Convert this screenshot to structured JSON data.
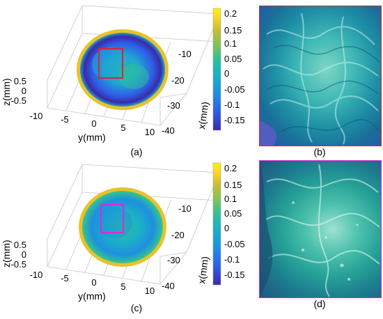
{
  "colors": {
    "colormap": [
      "#3a2aa8",
      "#2f5ee6",
      "#1f8fe0",
      "#19b0c8",
      "#2fc097",
      "#7cc45a",
      "#c8bd35",
      "#f6d62a",
      "#f9f20f"
    ],
    "box_b": "#e0203a",
    "box_d": "#d72ad7",
    "plate_rim": "#e9c22b",
    "grid": "#d0d0d0"
  },
  "chart_data": [
    {
      "panel": "(a)",
      "type": "surface",
      "axes": {
        "x": {
          "label": "x(mm)",
          "ticks": [
            -10,
            -20,
            -30,
            -40
          ]
        },
        "y": {
          "label": "y(mm)",
          "ticks": [
            -10,
            -5,
            0,
            5,
            10
          ]
        },
        "z": {
          "label": "z(mm)",
          "ticks": [
            0.5,
            0,
            -0.5
          ]
        }
      },
      "colorbar": {
        "ticks": [
          0.2,
          0.15,
          0.1,
          0.05,
          0,
          -0.05,
          -0.1,
          -0.15
        ],
        "range": [
          -0.18,
          0.22
        ]
      },
      "highlight_box_color": "#e0203a"
    },
    {
      "panel": "(c)",
      "type": "surface",
      "axes": {
        "x": {
          "label": "x(mm)",
          "ticks": [
            -10,
            -20,
            -30,
            -40
          ]
        },
        "y": {
          "label": "y(mm)",
          "ticks": [
            -10,
            -5,
            0,
            5,
            10
          ]
        },
        "z": {
          "label": "z(mm)",
          "ticks": [
            0.5,
            0,
            -0.5
          ]
        }
      },
      "colorbar": {
        "ticks": [
          0.2,
          0.15,
          0.1,
          0.05,
          0,
          -0.05,
          -0.1,
          -0.15
        ],
        "range": [
          -0.18,
          0.22
        ]
      },
      "highlight_box_color": "#d72ad7"
    }
  ],
  "captions": {
    "a": "(a)",
    "b": "(b)",
    "c": "(c)",
    "d": "(d)"
  },
  "axis_text": {
    "a": {
      "z_ticks": [
        "0.5",
        "0",
        "-0.5"
      ],
      "y_ticks": [
        "-10",
        "-5",
        "0",
        "5",
        "10"
      ],
      "x_ticks": [
        "-10",
        "-20",
        "-30",
        "-40"
      ],
      "cbar_ticks": [
        "0.2",
        "0.15",
        "0.1",
        "0.05",
        "0",
        "-0.05",
        "-0.1",
        "-0.15"
      ],
      "zlabel": "z(mm)",
      "ylabel": "y(mm)",
      "xlabel": "x(mm)"
    },
    "c": {
      "z_ticks": [
        "0.5",
        "0",
        "-0.5"
      ],
      "y_ticks": [
        "-10",
        "-5",
        "0",
        "5",
        "10"
      ],
      "x_ticks": [
        "-10",
        "-20",
        "-30",
        "-40"
      ],
      "cbar_ticks": [
        "0.2",
        "0.15",
        "0.1",
        "0.05",
        "0",
        "-0.05",
        "-0.1",
        "-0.15"
      ],
      "zlabel": "z(mm)",
      "ylabel": "y(mm)",
      "xlabel": "x(mm)"
    }
  }
}
